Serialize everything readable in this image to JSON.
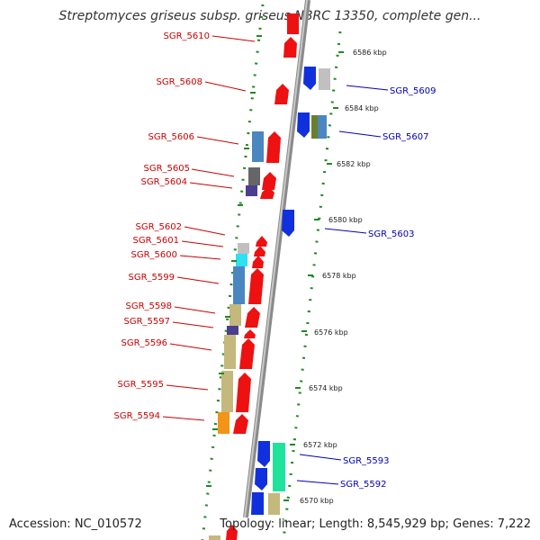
{
  "title": "Streptomyces griseus subsp. griseus NBRC 13350, complete gen...",
  "accession": "Accession: NC_010572",
  "topology": "Topology: linear; Length: 8,545,929 bp; Genes: 7,222",
  "colors": {
    "backbone": "#888888",
    "dots": "#1f8a1f",
    "left_label": "#cc0000",
    "right_label": "#0000bb"
  },
  "kbp_ticks": [
    "6586 kbp",
    "6584 kbp",
    "6582 kbp",
    "6580 kbp",
    "6578 kbp",
    "6576 kbp",
    "6574 kbp",
    "6572 kbp",
    "6570 kbp"
  ],
  "left_labels": [
    "SGR_5610",
    "SGR_5608",
    "SGR_5606",
    "SGR_5605",
    "SGR_5604",
    "SGR_5602",
    "SGR_5601",
    "SGR_5600",
    "SGR_5599",
    "SGR_5598",
    "SGR_5597",
    "SGR_5596",
    "SGR_5595",
    "SGR_5594"
  ],
  "right_labels": [
    "SGR_5609",
    "SGR_5607",
    "SGR_5603",
    "SGR_5593",
    "SGR_5592"
  ]
}
